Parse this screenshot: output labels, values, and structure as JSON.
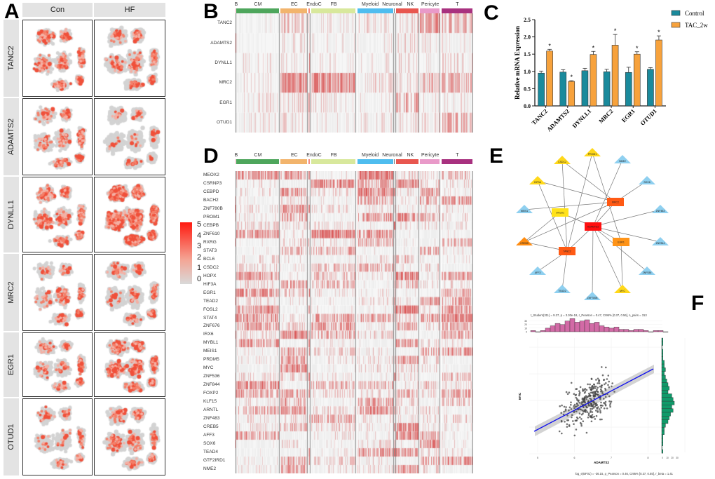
{
  "panel_letters": {
    "a": "A",
    "b": "B",
    "c": "C",
    "d": "D",
    "e": "E",
    "f": "F"
  },
  "panel_a": {
    "conditions": [
      "Con",
      "HF"
    ],
    "genes": [
      "TANC2",
      "ADAMTS2",
      "DYNLL1",
      "MRC2",
      "EGR1",
      "OTUD1"
    ],
    "legend": {
      "ticks": [
        "5",
        "4",
        "3",
        "2",
        "1",
        "0"
      ],
      "low_color": "#d9d9d9",
      "high_color": "#ff0000"
    }
  },
  "cell_types": [
    {
      "name": "B",
      "color": "#f4b6c8"
    },
    {
      "name": "CM",
      "color": "#4ea65c"
    },
    {
      "name": "EC",
      "color": "#f2b46c"
    },
    {
      "name": "EndoC",
      "color": "#f28c84"
    },
    {
      "name": "FB",
      "color": "#d8e89c"
    },
    {
      "name": "Myeloid",
      "color": "#4fbdef"
    },
    {
      "name": "Neuronal",
      "color": "#7a7a7a"
    },
    {
      "name": "NK",
      "color": "#e8564f"
    },
    {
      "name": "Pericyte",
      "color": "#e99ac9"
    },
    {
      "name": "T",
      "color": "#a8317f"
    }
  ],
  "panel_b": {
    "genes": [
      "TANC2",
      "ADAMTS2",
      "DYNLL1",
      "MRC2",
      "EGR1",
      "OTUD1"
    ]
  },
  "panel_d": {
    "genes": [
      "MEOX2",
      "CSRNP3",
      "CEBPD",
      "BACH2",
      "ZNF780B",
      "PROM1",
      "CEBPB",
      "ZNF610",
      "RXRG",
      "STAT3",
      "BCL6",
      "CSDC2",
      "HOPX",
      "HIF3A",
      "EGR1",
      "TEAD2",
      "FOSL2",
      "STAT4",
      "ZNF676",
      "IRX6",
      "MYBL1",
      "MEIS1",
      "PRDM5",
      "MYC",
      "ZNF536",
      "ZNF844",
      "FOXP2",
      "KLF15",
      "ARNTL",
      "ZNF483",
      "CREB5",
      "AFF3",
      "SOX6",
      "TEAD4",
      "GTF2IRD1",
      "NME2"
    ]
  },
  "chart_data": {
    "type": "bar",
    "title": "",
    "xlabel": "",
    "ylabel": "Relative mRNA Expression",
    "ylim": [
      0,
      2.5
    ],
    "yticks": [
      "0.0",
      "0.5",
      "1.0",
      "1.5",
      "2.0",
      "2.5"
    ],
    "categories": [
      "TANC2",
      "ADAMTS2",
      "DYNLL1",
      "MRC2",
      "EGR1",
      "OTUD1"
    ],
    "series": [
      {
        "name": "Control",
        "color": "#1a8a9c",
        "values": [
          0.95,
          0.98,
          1.02,
          0.99,
          0.97,
          1.06
        ],
        "errors": [
          0.06,
          0.07,
          0.07,
          0.07,
          0.15,
          0.05
        ],
        "significant": [
          false,
          false,
          false,
          false,
          false,
          false
        ]
      },
      {
        "name": "TAC_2w",
        "color": "#f7a23c",
        "values": [
          1.59,
          0.71,
          1.49,
          1.76,
          1.5,
          1.91
        ],
        "errors": [
          0.05,
          0.02,
          0.09,
          0.31,
          0.07,
          0.12
        ],
        "significant": [
          true,
          true,
          true,
          true,
          true,
          true
        ]
      }
    ],
    "significance_mark": "*",
    "legend": "top-right"
  },
  "panel_e": {
    "nodes": [
      {
        "id": "ADAMTS2",
        "shape": "rect",
        "color": "#ff1010"
      },
      {
        "id": "MRC2",
        "shape": "rect",
        "color": "#ff5a14"
      },
      {
        "id": "TANC2",
        "shape": "rect",
        "color": "#ff5a14"
      },
      {
        "id": "EGR1",
        "shape": "rect",
        "color": "#ff9418"
      },
      {
        "id": "OTUD1",
        "shape": "rect",
        "color": "#ffe21a"
      },
      {
        "id": "PROM1",
        "shape": "tri",
        "color": "#ffd81a"
      },
      {
        "id": "CSDC2",
        "shape": "tri",
        "color": "#ffd81a"
      },
      {
        "id": "HIF3A",
        "shape": "tri",
        "color": "#ffd81a"
      },
      {
        "id": "MYC",
        "shape": "tri",
        "color": "#ffd81a"
      },
      {
        "id": "CREB5",
        "shape": "tri",
        "color": "#ff8c10"
      },
      {
        "id": "NME2",
        "shape": "tri",
        "color": "#8fd0f0"
      },
      {
        "id": "SOX6",
        "shape": "tri",
        "color": "#8fd0f0"
      },
      {
        "id": "MEIS1",
        "shape": "tri",
        "color": "#8fd0f0"
      },
      {
        "id": "ZNF483",
        "shape": "tri",
        "color": "#8fd0f0"
      },
      {
        "id": "ZNF844",
        "shape": "tri",
        "color": "#8fd0f0"
      },
      {
        "id": "AFF3",
        "shape": "tri",
        "color": "#8fd0f0"
      },
      {
        "id": "ZNF536",
        "shape": "tri",
        "color": "#8fd0f0"
      },
      {
        "id": "TEAD2",
        "shape": "tri",
        "color": "#8fd0f0"
      },
      {
        "id": "ZNF780B",
        "shape": "tri",
        "color": "#8fd0f0"
      }
    ],
    "edges": [
      [
        "CSDC2",
        "MRC2"
      ],
      [
        "CSDC2",
        "TANC2"
      ],
      [
        "PROM1",
        "TANC2"
      ],
      [
        "PROM1",
        "EGR1"
      ],
      [
        "NME2",
        "ADAMTS2"
      ],
      [
        "HIF3A",
        "MRC2"
      ],
      [
        "HIF3A",
        "TANC2"
      ],
      [
        "SOX6",
        "MRC2"
      ],
      [
        "MEIS1",
        "MRC2"
      ],
      [
        "OTUD1",
        "ADAMTS2"
      ],
      [
        "OTUD1",
        "CREB5"
      ],
      [
        "ZNF483",
        "ADAMTS2"
      ],
      [
        "CREB5",
        "MRC2"
      ],
      [
        "CREB5",
        "TANC2"
      ],
      [
        "ADAMTS2",
        "MRC2"
      ],
      [
        "ADAMTS2",
        "TANC2"
      ],
      [
        "ADAMTS2",
        "EGR1"
      ],
      [
        "ADAMTS2",
        "ZNF844"
      ],
      [
        "ADAMTS2",
        "ZNF536"
      ],
      [
        "ADAMTS2",
        "ZNF780B"
      ],
      [
        "ADAMTS2",
        "MYC"
      ],
      [
        "EGR1",
        "MYC"
      ],
      [
        "TANC2",
        "AFF3"
      ],
      [
        "TANC2",
        "TEAD2"
      ]
    ]
  },
  "panel_f": {
    "stats_top": "t_Student(311) = 9.27, p = 3.30e-18, r_Pearson = 0.47, CI95% [0.37, 0.56], n_pairs = 313",
    "stats_bottom": "log_e(BF01) = -36.15, ρ_Pearson = 0.46, CI95% [0.37, 0.55], r_beta = 1.41",
    "xlabel": "ADAMTS2",
    "ylabel": "MYC",
    "x_ticks": [
      "5",
      "6",
      "7",
      "8"
    ],
    "top_hist_ticks": [
      "30",
      "20",
      "10",
      "0"
    ],
    "right_hist_ticks": [
      "0",
      "10",
      "20",
      "30"
    ],
    "fit_color": "#1010ee",
    "top_hist_color": "#d26aa6",
    "right_hist_color": "#109a6a"
  }
}
